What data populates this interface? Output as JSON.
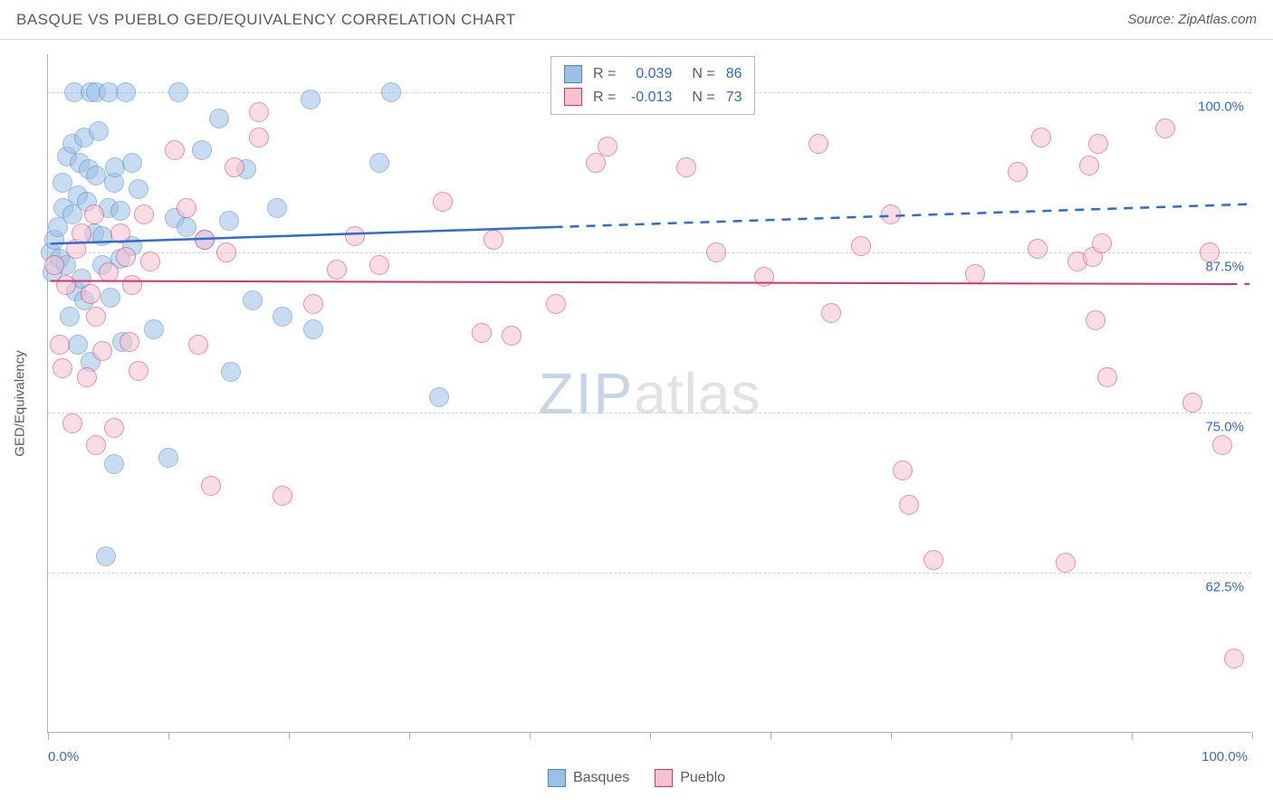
{
  "title": "BASQUE VS PUEBLO GED/EQUIVALENCY CORRELATION CHART",
  "source": "Source: ZipAtlas.com",
  "y_axis_label": "GED/Equivalency",
  "watermark": {
    "part1": "ZIP",
    "part2": "atlas"
  },
  "chart": {
    "type": "scatter",
    "background_color": "#ffffff",
    "grid_color": "#d0d0d0",
    "axis_color": "#b0b0b0",
    "xlim": [
      0,
      100
    ],
    "ylim": [
      50,
      103
    ],
    "x_ticks": [
      0,
      10,
      20,
      30,
      40,
      50,
      60,
      70,
      80,
      90,
      100
    ],
    "x_tick_labels": {
      "0": "0.0%",
      "100": "100.0%"
    },
    "y_grid": [
      62.5,
      75.0,
      87.5,
      100.0
    ],
    "y_tick_labels": [
      "62.5%",
      "75.0%",
      "87.5%",
      "100.0%"
    ],
    "marker_radius": 11,
    "marker_opacity": 0.55,
    "title_fontsize": 17,
    "label_fontsize": 15,
    "series": [
      {
        "name": "Basques",
        "color_fill": "#9cc0e7",
        "color_stroke": "#4a84c4",
        "R": "0.039",
        "N": "86",
        "trend": {
          "x1": 0.2,
          "y1": 88.2,
          "x2_solid": 42,
          "y2_solid": 89.5,
          "x2": 100,
          "y2": 91.3,
          "color": "#2e6bd6",
          "width": 2.5
        },
        "points": [
          [
            0.2,
            87.5
          ],
          [
            0.4,
            86
          ],
          [
            0.5,
            88.5
          ],
          [
            0.8,
            89.5
          ],
          [
            1.0,
            87
          ],
          [
            1.2,
            93
          ],
          [
            1.3,
            91
          ],
          [
            1.5,
            86.5
          ],
          [
            1.6,
            95
          ],
          [
            1.8,
            82.5
          ],
          [
            2.0,
            90.5
          ],
          [
            2.0,
            96
          ],
          [
            2.2,
            100
          ],
          [
            2.3,
            84.5
          ],
          [
            2.5,
            92
          ],
          [
            2.6,
            94.5
          ],
          [
            2.8,
            85.5
          ],
          [
            3.0,
            96.5
          ],
          [
            3.0,
            83.8
          ],
          [
            3.2,
            91.5
          ],
          [
            3.4,
            94
          ],
          [
            3.5,
            100
          ],
          [
            3.5,
            79
          ],
          [
            3.8,
            89
          ],
          [
            4.0,
            93.5
          ],
          [
            4.0,
            100
          ],
          [
            4.2,
            97
          ],
          [
            4.5,
            86.5
          ],
          [
            4.5,
            88.8
          ],
          [
            5.0,
            91
          ],
          [
            5.0,
            100
          ],
          [
            5.2,
            84
          ],
          [
            5.5,
            93
          ],
          [
            5.6,
            94.2
          ],
          [
            6.0,
            90.8
          ],
          [
            6.0,
            87
          ],
          [
            6.2,
            80.5
          ],
          [
            6.5,
            100
          ],
          [
            7.0,
            94.5
          ],
          [
            7.0,
            88
          ],
          [
            7.5,
            92.5
          ],
          [
            4.8,
            63.8
          ],
          [
            5.5,
            71
          ],
          [
            2.5,
            80.3
          ],
          [
            8.8,
            81.5
          ],
          [
            10.0,
            71.5
          ],
          [
            10.5,
            90.2
          ],
          [
            10.8,
            100
          ],
          [
            11.5,
            89.5
          ],
          [
            12.8,
            95.5
          ],
          [
            13.0,
            88.5
          ],
          [
            14.2,
            98
          ],
          [
            15.0,
            90
          ],
          [
            15.2,
            78.2
          ],
          [
            16.5,
            94
          ],
          [
            17.0,
            83.8
          ],
          [
            19.0,
            91
          ],
          [
            19.5,
            82.5
          ],
          [
            21.8,
            99.5
          ],
          [
            22.0,
            81.5
          ],
          [
            27.5,
            94.5
          ],
          [
            28.5,
            100
          ],
          [
            32.5,
            76.2
          ]
        ]
      },
      {
        "name": "Pueblo",
        "color_fill": "#f6c2cf",
        "color_stroke": "#d6336c",
        "R": "-0.013",
        "N": "73",
        "trend": {
          "x1": 0.2,
          "y1": 85.3,
          "x2_solid": 98,
          "y2_solid": 85.05,
          "x2": 99.8,
          "y2": 85.05,
          "color": "#d6336c",
          "width": 2
        },
        "points": [
          [
            0.5,
            86.5
          ],
          [
            1.0,
            80.3
          ],
          [
            1.2,
            78.5
          ],
          [
            1.5,
            85
          ],
          [
            2.0,
            74.2
          ],
          [
            2.3,
            87.8
          ],
          [
            2.8,
            89
          ],
          [
            3.2,
            77.8
          ],
          [
            3.5,
            84.3
          ],
          [
            3.8,
            90.5
          ],
          [
            4.0,
            82.5
          ],
          [
            4.5,
            79.8
          ],
          [
            5.0,
            86
          ],
          [
            5.5,
            73.8
          ],
          [
            6.0,
            89
          ],
          [
            6.5,
            87.2
          ],
          [
            7.0,
            85
          ],
          [
            7.5,
            78.3
          ],
          [
            8.0,
            90.5
          ],
          [
            8.5,
            86.8
          ],
          [
            4.0,
            72.5
          ],
          [
            6.8,
            80.5
          ],
          [
            10.5,
            95.5
          ],
          [
            11.5,
            91
          ],
          [
            12.5,
            80.3
          ],
          [
            13.0,
            88.5
          ],
          [
            13.5,
            69.3
          ],
          [
            14.8,
            87.5
          ],
          [
            15.5,
            94.2
          ],
          [
            17.5,
            98.5
          ],
          [
            17.5,
            96.5
          ],
          [
            19.5,
            68.5
          ],
          [
            22.0,
            83.5
          ],
          [
            24.0,
            86.2
          ],
          [
            25.5,
            88.8
          ],
          [
            27.5,
            86.5
          ],
          [
            32.8,
            91.5
          ],
          [
            36.0,
            81.2
          ],
          [
            37.0,
            88.5
          ],
          [
            38.5,
            81
          ],
          [
            42.2,
            83.5
          ],
          [
            45.5,
            94.5
          ],
          [
            46.5,
            95.8
          ],
          [
            53.0,
            94.2
          ],
          [
            55.5,
            87.5
          ],
          [
            59.5,
            85.6
          ],
          [
            64.0,
            96
          ],
          [
            65.0,
            82.8
          ],
          [
            67.5,
            88
          ],
          [
            70.0,
            90.5
          ],
          [
            71.0,
            70.5
          ],
          [
            71.5,
            67.8
          ],
          [
            73.5,
            63.5
          ],
          [
            77.0,
            85.8
          ],
          [
            80.5,
            93.8
          ],
          [
            82.2,
            87.8
          ],
          [
            82.5,
            96.5
          ],
          [
            84.5,
            63.3
          ],
          [
            85.5,
            86.8
          ],
          [
            86.5,
            94.3
          ],
          [
            86.8,
            87.2
          ],
          [
            87.0,
            82.2
          ],
          [
            87.2,
            96
          ],
          [
            87.5,
            88.2
          ],
          [
            88.0,
            77.8
          ],
          [
            92.8,
            97.2
          ],
          [
            95.0,
            75.8
          ],
          [
            96.5,
            87.5
          ],
          [
            97.5,
            72.5
          ],
          [
            98.5,
            55.8
          ]
        ]
      }
    ]
  },
  "legend_top": {
    "R_label": "R =",
    "N_label": "N ="
  },
  "legend_bottom": [
    {
      "label": "Basques",
      "fill": "#9cc0e7",
      "stroke": "#4a84c4"
    },
    {
      "label": "Pueblo",
      "fill": "#f6c2cf",
      "stroke": "#d6336c"
    }
  ]
}
